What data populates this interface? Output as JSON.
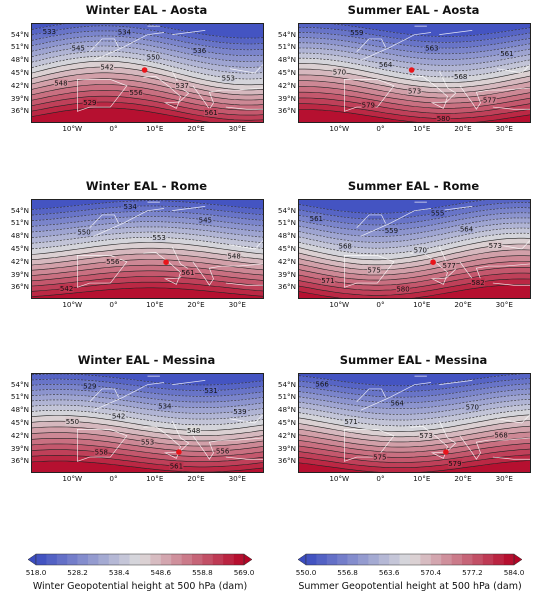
{
  "chart_data": [
    {
      "type": "contour-map",
      "title": "Winter EAL - Aosta",
      "season": "winter",
      "lat_ticks": [
        "54°N",
        "51°N",
        "48°N",
        "45°N",
        "42°N",
        "39°N",
        "36°N"
      ],
      "lon_ticks": [
        "10°W",
        "0°",
        "10°E",
        "20°E",
        "30°E"
      ],
      "contour_labels": [
        "533",
        "534",
        "536",
        "545",
        "550",
        "553",
        "542",
        "537",
        "548",
        "556",
        "561",
        "529"
      ],
      "marker": {
        "lon": 7.3,
        "lat": 45.7
      }
    },
    {
      "type": "contour-map",
      "title": "Summer EAL - Aosta",
      "season": "summer",
      "lat_ticks": [
        "54°N",
        "51°N",
        "48°N",
        "45°N",
        "42°N",
        "39°N",
        "36°N"
      ],
      "lon_ticks": [
        "10°W",
        "0°",
        "10°E",
        "20°E",
        "30°E"
      ],
      "contour_labels": [
        "559",
        "563",
        "561",
        "564",
        "568",
        "570",
        "573",
        "577",
        "579",
        "580"
      ],
      "marker": {
        "lon": 7.3,
        "lat": 45.7
      }
    },
    {
      "type": "contour-map",
      "title": "Winter EAL - Rome",
      "season": "winter",
      "lat_ticks": [
        "54°N",
        "51°N",
        "48°N",
        "45°N",
        "42°N",
        "39°N",
        "36°N"
      ],
      "lon_ticks": [
        "10°W",
        "0°",
        "10°E",
        "20°E",
        "30°E"
      ],
      "contour_labels": [
        "534",
        "545",
        "550",
        "553",
        "548",
        "556",
        "561",
        "542"
      ],
      "marker": {
        "lon": 12.5,
        "lat": 41.9
      }
    },
    {
      "type": "contour-map",
      "title": "Summer EAL - Rome",
      "season": "summer",
      "lat_ticks": [
        "54°N",
        "51°N",
        "48°N",
        "45°N",
        "42°N",
        "39°N",
        "36°N"
      ],
      "lon_ticks": [
        "10°W",
        "0°",
        "10°E",
        "20°E",
        "30°E"
      ],
      "contour_labels": [
        "555",
        "561",
        "559",
        "564",
        "568",
        "570",
        "573",
        "575",
        "577",
        "571",
        "580",
        "582"
      ],
      "marker": {
        "lon": 12.5,
        "lat": 41.9
      }
    },
    {
      "type": "contour-map",
      "title": "Winter EAL - Messina",
      "season": "winter",
      "lat_ticks": [
        "54°N",
        "51°N",
        "48°N",
        "45°N",
        "42°N",
        "39°N",
        "36°N"
      ],
      "lon_ticks": [
        "10°W",
        "0°",
        "10°E",
        "20°E",
        "30°E"
      ],
      "contour_labels": [
        "531",
        "529",
        "534",
        "539",
        "542",
        "548",
        "550",
        "553",
        "556",
        "558",
        "561"
      ],
      "marker": {
        "lon": 15.6,
        "lat": 38.2
      }
    },
    {
      "type": "contour-map",
      "title": "Summer EAL - Messina",
      "season": "summer",
      "lat_ticks": [
        "54°N",
        "51°N",
        "48°N",
        "45°N",
        "42°N",
        "39°N",
        "36°N"
      ],
      "lon_ticks": [
        "10°W",
        "0°",
        "10°E",
        "20°E",
        "30°E"
      ],
      "contour_labels": [
        "566",
        "564",
        "570",
        "571",
        "573",
        "568",
        "575",
        "579"
      ],
      "marker": {
        "lon": 15.6,
        "lat": 38.2
      }
    }
  ],
  "colorbars": [
    {
      "label": "Winter Geopotential height at 500 hPa (dam)",
      "ticks": [
        "518.0",
        "528.2",
        "538.4",
        "548.6",
        "558.8",
        "569.0"
      ],
      "range": [
        518.0,
        569.0
      ]
    },
    {
      "label": "Summer Geopotential height at 500 hPa (dam)",
      "ticks": [
        "550.0",
        "556.8",
        "563.6",
        "570.4",
        "577.2",
        "584.0"
      ],
      "range": [
        550.0,
        584.0
      ]
    }
  ],
  "colors": {
    "low": "#3b4cc0",
    "mid": "#dddcdc",
    "high": "#b40426",
    "marker": "#e8141a"
  }
}
